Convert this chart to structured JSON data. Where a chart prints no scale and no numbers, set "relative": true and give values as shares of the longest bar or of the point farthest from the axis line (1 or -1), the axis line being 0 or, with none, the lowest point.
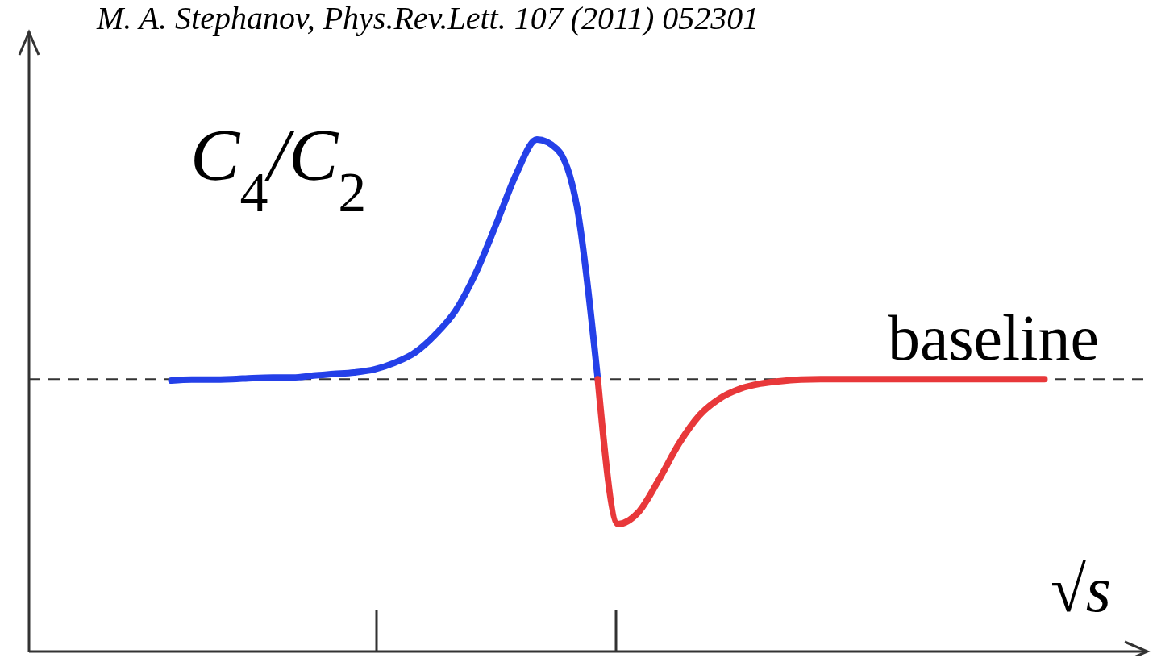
{
  "chart_data": {
    "type": "line",
    "relative": true,
    "xlabel": "√s",
    "ylabel": "C$_{4}$/C$_{2}$",
    "annotations": [
      "M. A. Stephanov, Phys.Rev.Lett. 107 (2011) 052301"
    ],
    "categories": [
      null,
      null,
      null,
      null,
      null,
      null,
      null,
      null,
      null,
      null,
      null,
      null,
      null,
      null,
      null,
      null,
      null,
      null,
      null,
      null,
      null,
      null,
      null,
      null,
      null,
      null,
      null,
      null,
      null,
      null,
      null,
      null,
      null,
      null,
      null,
      null,
      null,
      null,
      null,
      null,
      null,
      null,
      null,
      null
    ],
    "series": [
      {
        "color": "#2440e8",
        "values": [
          0.529,
          0.531,
          0.531,
          0.532,
          0.534,
          0.535,
          0.535,
          0.539,
          0.542,
          0.545,
          0.551,
          0.564,
          0.584,
          0.619,
          0.666,
          0.74,
          0.835,
          0.934,
          1,
          0.981,
          0.863,
          0.532,
          null,
          null,
          null,
          null,
          null,
          null,
          null,
          null,
          null,
          null,
          null,
          null,
          null,
          null,
          null,
          null,
          null,
          null,
          null,
          null,
          null,
          null
        ]
      },
      {
        "color": "#e8383a",
        "values": [
          null,
          null,
          null,
          null,
          null,
          null,
          null,
          null,
          null,
          null,
          null,
          null,
          null,
          null,
          null,
          null,
          null,
          null,
          null,
          null,
          null,
          0.532,
          0.249,
          0.272,
          0.335,
          0.406,
          0.461,
          0.494,
          0.513,
          0.523,
          0.528,
          0.531,
          0.532,
          0.532,
          0.532,
          0.532,
          0.532,
          0.532,
          0.532,
          0.532,
          0.532,
          0.532,
          0.532,
          0.532
        ]
      }
    ],
    "ref_lines": [
      {
        "axis": "y",
        "value": 0.532,
        "label": "baseline",
        "color": "#333333",
        "line_style": "dashed"
      }
    ],
    "line_style": "solid",
    "marker": "none"
  }
}
